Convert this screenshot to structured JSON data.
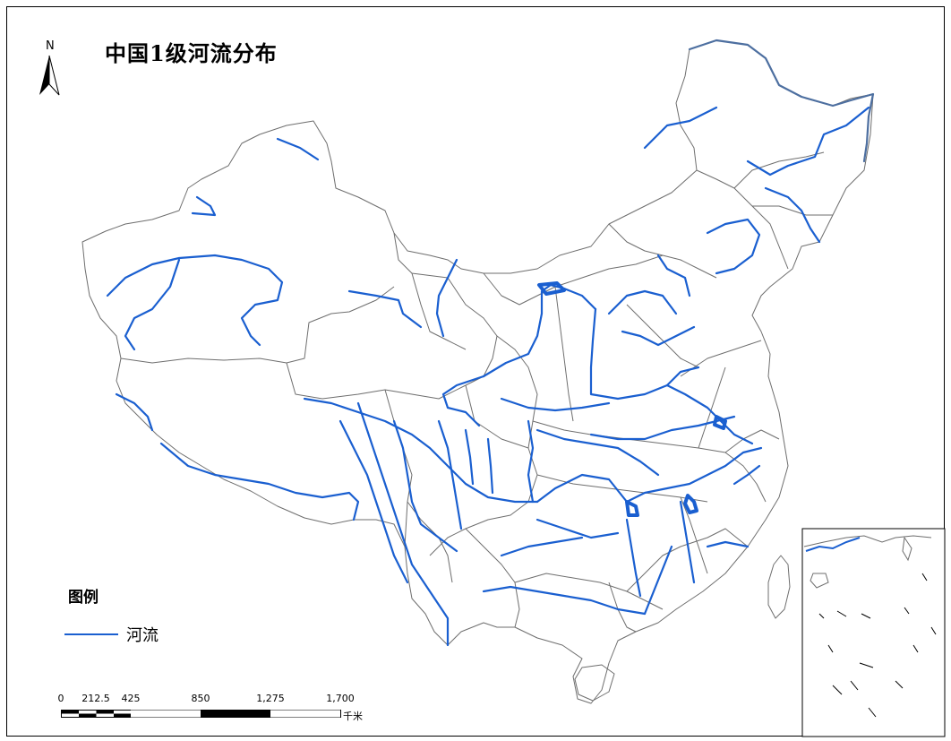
{
  "map": {
    "title": "中国1级河流分布",
    "north_arrow_label": "N",
    "legend": {
      "title": "图例",
      "items": [
        {
          "label": "河流",
          "color": "#1a5fd0"
        }
      ]
    },
    "scale_bar": {
      "ticks": [
        "0",
        "212.5",
        "425",
        "850",
        "1,275",
        "1,700"
      ],
      "unit": "千米"
    },
    "colors": {
      "river": "#1a5fd0",
      "boundary": "#6e6e6e",
      "frame": "#000000"
    }
  }
}
